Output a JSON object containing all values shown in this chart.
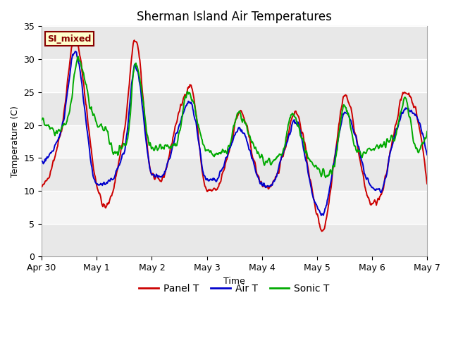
{
  "title": "Sherman Island Air Temperatures",
  "xlabel": "Time",
  "ylabel": "Temperature (C)",
  "ylim": [
    0,
    35
  ],
  "yticks": [
    0,
    5,
    10,
    15,
    20,
    25,
    30,
    35
  ],
  "xtick_labels": [
    "Apr 30",
    "May 1",
    "May 2",
    "May 3",
    "May 4",
    "May 5",
    "May 6",
    "May 7"
  ],
  "line_colors": {
    "panel": "#cc0000",
    "air": "#0000cc",
    "sonic": "#00aa00"
  },
  "line_width": 1.4,
  "legend_labels": [
    "Panel T",
    "Air T",
    "Sonic T"
  ],
  "annotation_text": "SI_mixed",
  "annotation_color": "#880000",
  "annotation_bg": "#ffffcc",
  "band_colors": [
    "#e8e8e8",
    "#f5f5f5"
  ],
  "title_fontsize": 12,
  "axis_fontsize": 9,
  "tick_fontsize": 9,
  "panel_keypoints": [
    [
      0.0,
      10.5
    ],
    [
      0.35,
      19.0
    ],
    [
      0.6,
      33.0
    ],
    [
      1.0,
      11.0
    ],
    [
      1.15,
      7.5
    ],
    [
      1.5,
      19.0
    ],
    [
      1.7,
      33.0
    ],
    [
      2.0,
      12.5
    ],
    [
      2.15,
      11.5
    ],
    [
      2.5,
      22.0
    ],
    [
      2.7,
      26.0
    ],
    [
      3.0,
      10.0
    ],
    [
      3.15,
      10.0
    ],
    [
      3.4,
      16.0
    ],
    [
      3.6,
      22.0
    ],
    [
      4.0,
      11.0
    ],
    [
      4.15,
      10.5
    ],
    [
      4.4,
      16.0
    ],
    [
      4.6,
      22.0
    ],
    [
      5.0,
      6.5
    ],
    [
      5.1,
      4.0
    ],
    [
      5.35,
      17.0
    ],
    [
      5.5,
      24.5
    ],
    [
      6.0,
      8.0
    ],
    [
      6.15,
      9.0
    ],
    [
      6.4,
      19.0
    ],
    [
      6.6,
      25.0
    ],
    [
      7.0,
      11.0
    ]
  ],
  "air_keypoints": [
    [
      0.0,
      14.5
    ],
    [
      0.35,
      19.0
    ],
    [
      0.6,
      31.0
    ],
    [
      1.0,
      11.0
    ],
    [
      1.15,
      11.0
    ],
    [
      1.5,
      16.0
    ],
    [
      1.7,
      29.0
    ],
    [
      2.0,
      12.5
    ],
    [
      2.15,
      12.0
    ],
    [
      2.5,
      20.0
    ],
    [
      2.7,
      23.5
    ],
    [
      3.0,
      11.5
    ],
    [
      3.15,
      11.5
    ],
    [
      3.4,
      16.0
    ],
    [
      3.6,
      19.5
    ],
    [
      4.0,
      11.0
    ],
    [
      4.15,
      10.5
    ],
    [
      4.4,
      16.0
    ],
    [
      4.6,
      20.5
    ],
    [
      5.0,
      7.5
    ],
    [
      5.1,
      6.5
    ],
    [
      5.35,
      16.0
    ],
    [
      5.5,
      22.0
    ],
    [
      6.0,
      10.5
    ],
    [
      6.15,
      10.0
    ],
    [
      6.4,
      18.0
    ],
    [
      6.6,
      22.5
    ],
    [
      7.0,
      15.5
    ]
  ],
  "sonic_keypoints": [
    [
      0.0,
      21.0
    ],
    [
      0.3,
      19.0
    ],
    [
      0.5,
      21.5
    ],
    [
      0.65,
      30.0
    ],
    [
      1.0,
      20.0
    ],
    [
      1.15,
      19.5
    ],
    [
      1.3,
      16.0
    ],
    [
      1.55,
      17.5
    ],
    [
      1.7,
      29.5
    ],
    [
      2.0,
      16.5
    ],
    [
      2.15,
      16.5
    ],
    [
      2.45,
      17.0
    ],
    [
      2.65,
      25.0
    ],
    [
      3.0,
      16.0
    ],
    [
      3.15,
      15.5
    ],
    [
      3.4,
      16.5
    ],
    [
      3.55,
      21.5
    ],
    [
      4.0,
      15.0
    ],
    [
      4.1,
      14.5
    ],
    [
      4.35,
      15.5
    ],
    [
      4.55,
      21.5
    ],
    [
      4.85,
      15.0
    ],
    [
      5.05,
      13.0
    ],
    [
      5.15,
      12.5
    ],
    [
      5.3,
      13.5
    ],
    [
      5.5,
      23.0
    ],
    [
      5.7,
      16.5
    ],
    [
      5.85,
      15.5
    ],
    [
      6.0,
      16.5
    ],
    [
      6.4,
      18.0
    ],
    [
      6.6,
      24.0
    ],
    [
      6.8,
      16.5
    ],
    [
      7.0,
      19.0
    ]
  ]
}
